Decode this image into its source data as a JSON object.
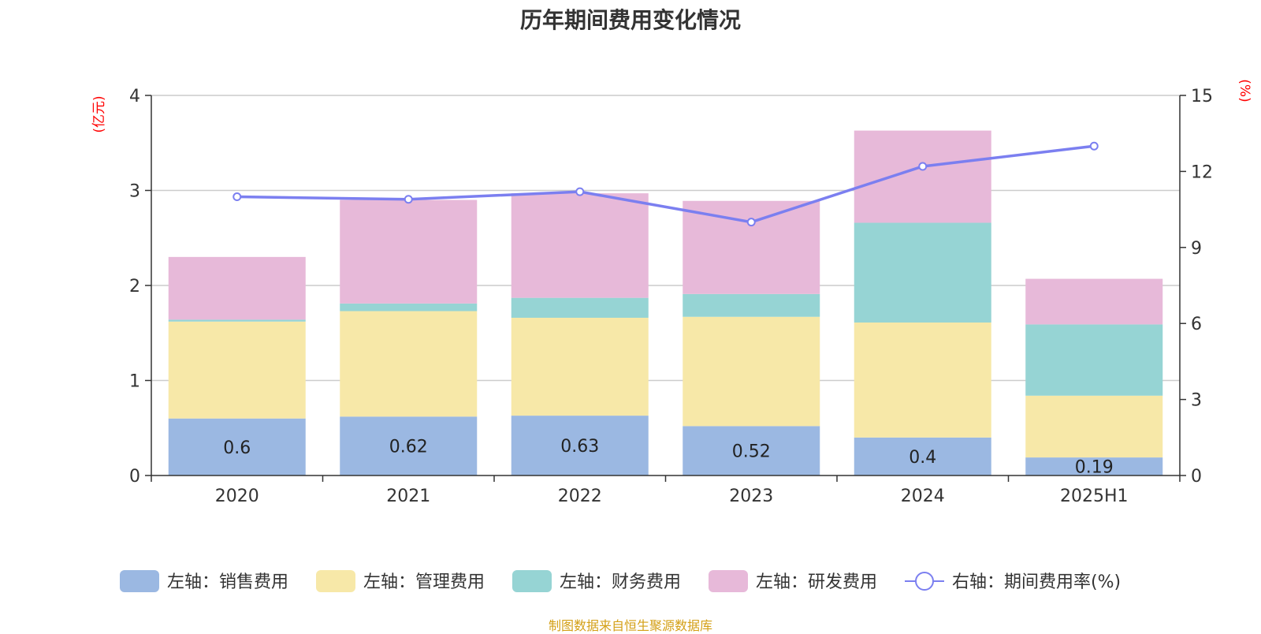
{
  "title": "历年期间费用变化情况",
  "source": "制图数据来自恒生聚源数据库",
  "chart_data": {
    "type": "bar",
    "stacked": true,
    "categories": [
      "2020",
      "2021",
      "2022",
      "2023",
      "2024",
      "2025H1"
    ],
    "left_axis": {
      "unit": "(亿元)",
      "ylim": [
        0,
        4
      ],
      "ticks": [
        "0",
        "1",
        "2",
        "3",
        "4"
      ]
    },
    "right_axis": {
      "unit": "(%)",
      "ylim": [
        0,
        15
      ],
      "ticks": [
        "0",
        "3",
        "6",
        "9",
        "12",
        "15"
      ]
    },
    "grid": true,
    "legend_position": "bottom",
    "series": [
      {
        "name": "左轴：销售费用",
        "axis": "left",
        "type": "bar",
        "color": "#9bb8e2",
        "values": [
          0.6,
          0.62,
          0.63,
          0.52,
          0.4,
          0.19
        ],
        "data_labels": [
          "0.6",
          "0.62",
          "0.63",
          "0.52",
          "0.4",
          "0.19"
        ]
      },
      {
        "name": "左轴：管理费用",
        "axis": "left",
        "type": "bar",
        "color": "#f7e8a8",
        "values": [
          1.02,
          1.11,
          1.03,
          1.15,
          1.21,
          0.65
        ]
      },
      {
        "name": "左轴：财务费用",
        "axis": "left",
        "type": "bar",
        "color": "#96d4d4",
        "values": [
          0.02,
          0.08,
          0.21,
          0.24,
          1.05,
          0.75
        ]
      },
      {
        "name": "左轴：研发费用",
        "axis": "left",
        "type": "bar",
        "color": "#e7b9d9",
        "values": [
          0.66,
          1.09,
          1.1,
          0.98,
          0.97,
          0.48
        ]
      },
      {
        "name": "右轴：期间费用率(%)",
        "axis": "right",
        "type": "line",
        "color": "#7b7ff0",
        "values": [
          11.0,
          10.9,
          11.2,
          10.0,
          12.2,
          13.0
        ]
      }
    ]
  }
}
